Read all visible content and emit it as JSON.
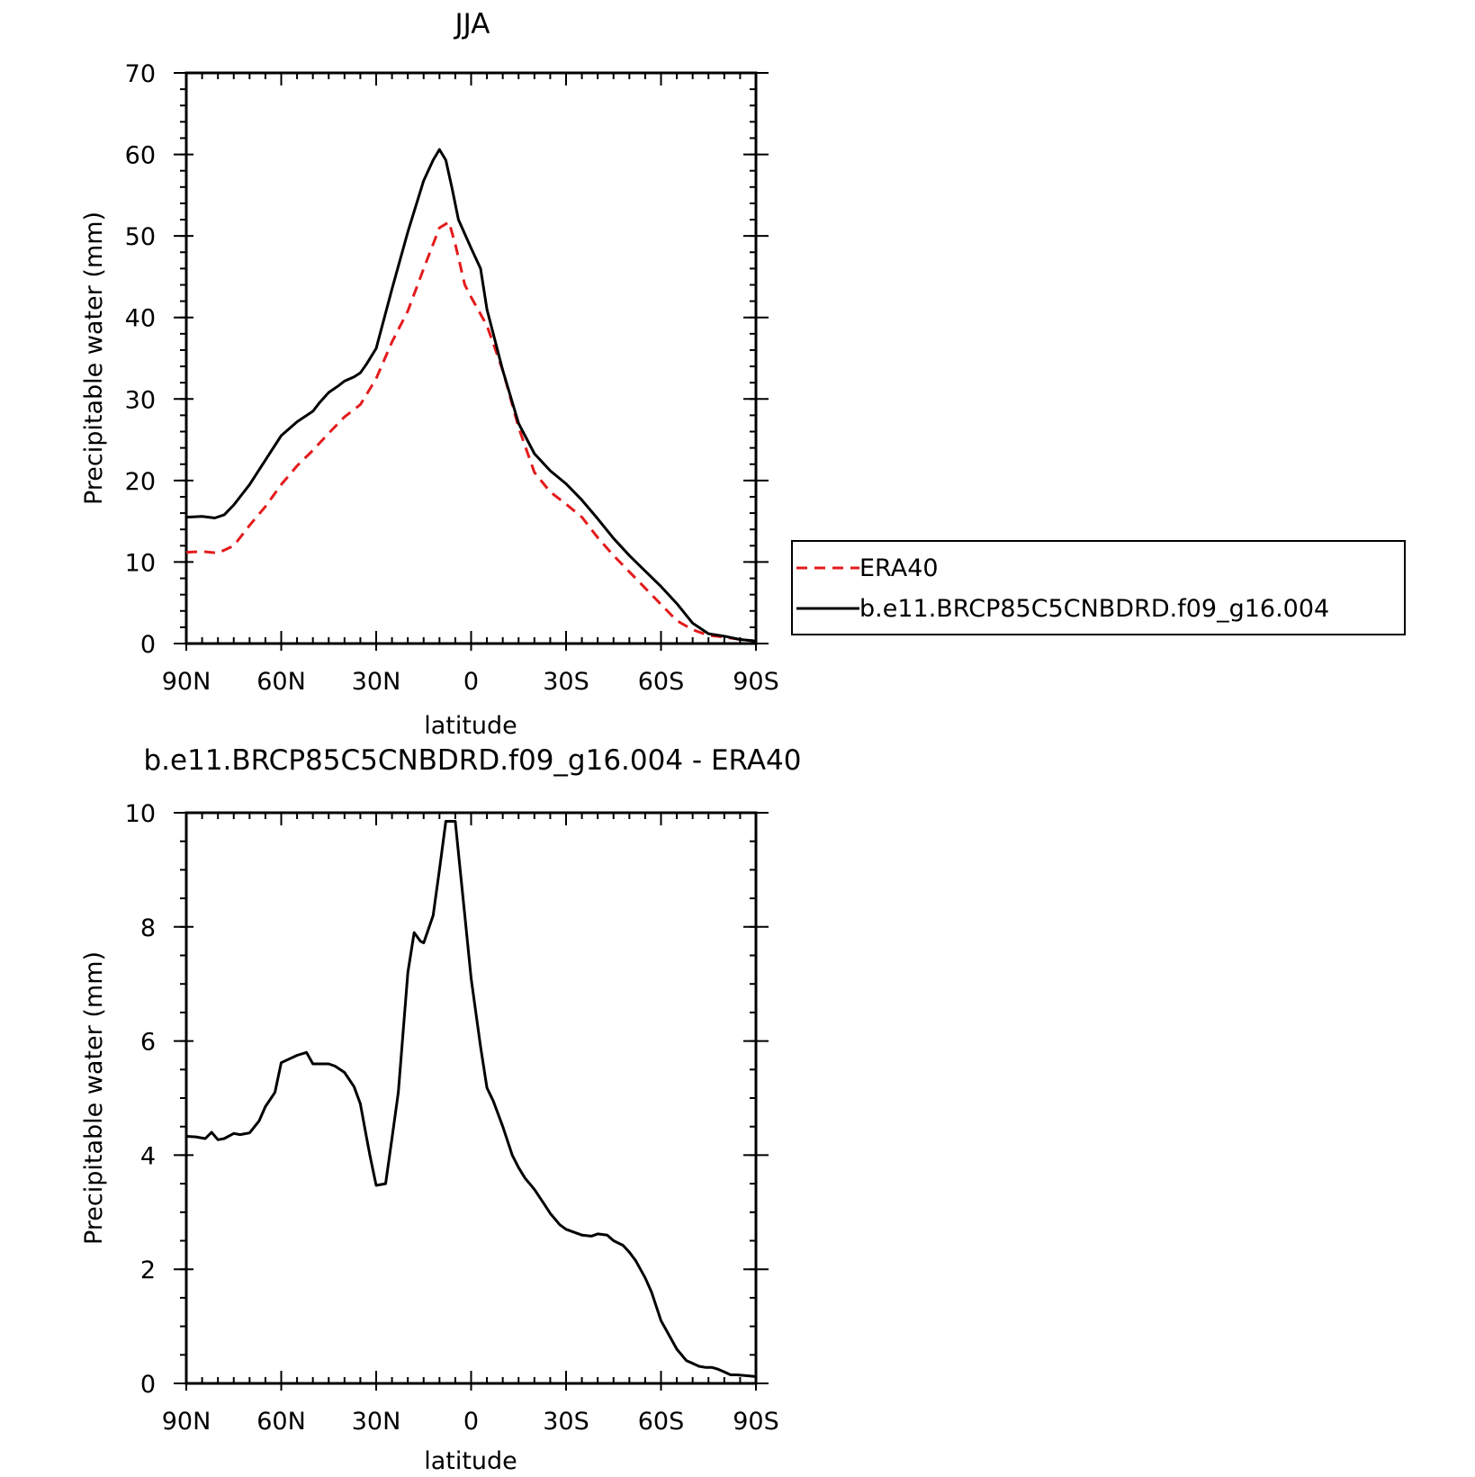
{
  "chart_data": [
    {
      "type": "line",
      "title": "JJA",
      "xlabel": "latitude",
      "ylabel": "Precipitable water (mm)",
      "xlim": [
        90,
        -90
      ],
      "ylim": [
        0,
        70
      ],
      "x_ticks": [
        {
          "value": 90,
          "label": "90N"
        },
        {
          "value": 60,
          "label": "60N"
        },
        {
          "value": 30,
          "label": "30N"
        },
        {
          "value": 0,
          "label": "0"
        },
        {
          "value": -30,
          "label": "30S"
        },
        {
          "value": -60,
          "label": "60S"
        },
        {
          "value": -90,
          "label": "90S"
        }
      ],
      "y_ticks": [
        0,
        10,
        20,
        30,
        40,
        50,
        60,
        70
      ],
      "legend_position": "right",
      "grid": false,
      "series": [
        {
          "name": "ERA40",
          "color": "#e41a1c",
          "dash": "dashed",
          "x": [
            90,
            85,
            80,
            75,
            70,
            65,
            60,
            55,
            50,
            45,
            40,
            35,
            30,
            25,
            20,
            15,
            10,
            7,
            5,
            2,
            0,
            -5,
            -10,
            -15,
            -20,
            -25,
            -30,
            -35,
            -40,
            -45,
            -50,
            -55,
            -60,
            -65,
            -70,
            -75,
            -80,
            -85,
            -90
          ],
          "y": [
            11.2,
            11.3,
            11.1,
            12,
            14.5,
            16.8,
            19.5,
            21.8,
            23.7,
            25.8,
            27.8,
            29.3,
            32.5,
            37,
            40.8,
            46,
            51,
            51.7,
            49,
            44,
            42.5,
            39,
            33.5,
            26.5,
            21,
            18.6,
            17.1,
            15.5,
            13,
            10.8,
            8.8,
            6.8,
            4.8,
            2.8,
            1.7,
            1.0,
            0.8,
            0.5,
            0.3
          ]
        },
        {
          "name": "b.e11.BRCP85C5CNBDRD.f09_g16.004",
          "color": "#000000",
          "dash": "solid",
          "x": [
            90,
            85,
            81,
            78,
            75,
            70,
            65,
            60,
            55,
            50,
            48,
            45,
            42,
            40,
            37,
            35,
            33,
            30,
            25,
            20,
            15,
            12,
            10,
            8,
            6,
            4,
            0,
            -3,
            -5,
            -10,
            -15,
            -20,
            -25,
            -30,
            -35,
            -40,
            -45,
            -50,
            -55,
            -60,
            -65,
            -70,
            -75,
            -80,
            -85,
            -90
          ],
          "y": [
            15.5,
            15.6,
            15.4,
            15.8,
            17,
            19.5,
            22.5,
            25.5,
            27.2,
            28.5,
            29.5,
            30.8,
            31.6,
            32.2,
            32.7,
            33.2,
            34.3,
            36.2,
            43.5,
            50.5,
            56.8,
            59.3,
            60.6,
            59.3,
            55.8,
            52,
            48.5,
            46,
            41,
            33.5,
            27,
            23.3,
            21.2,
            19.6,
            17.6,
            15.3,
            12.9,
            10.8,
            8.9,
            7,
            4.9,
            2.5,
            1.2,
            0.9,
            0.5,
            0.3
          ]
        }
      ]
    },
    {
      "type": "line",
      "title": "b.e11.BRCP85C5CNBDRD.f09_g16.004 - ERA40",
      "xlabel": "latitude",
      "ylabel": "Precipitable water (mm)",
      "xlim": [
        90,
        -90
      ],
      "ylim": [
        0,
        10
      ],
      "x_ticks": [
        {
          "value": 90,
          "label": "90N"
        },
        {
          "value": 60,
          "label": "60N"
        },
        {
          "value": 30,
          "label": "30N"
        },
        {
          "value": 0,
          "label": "0"
        },
        {
          "value": -30,
          "label": "30S"
        },
        {
          "value": -60,
          "label": "60S"
        },
        {
          "value": -90,
          "label": "90S"
        }
      ],
      "y_ticks": [
        0,
        2,
        4,
        6,
        8,
        10
      ],
      "grid": false,
      "series": [
        {
          "color": "#000000",
          "dash": "solid",
          "x": [
            90,
            87,
            84,
            82,
            80,
            78,
            75,
            73,
            70,
            67,
            65,
            62,
            60,
            55,
            52,
            50,
            45,
            43,
            40,
            37,
            35,
            33,
            32,
            30,
            27,
            25,
            23,
            20,
            18,
            16,
            15,
            12,
            10,
            8,
            6,
            5,
            4,
            2,
            0,
            -3,
            -5,
            -7,
            -10,
            -13,
            -15,
            -17,
            -20,
            -23,
            -25,
            -28,
            -30,
            -35,
            -38,
            -40,
            -43,
            -45,
            -48,
            -50,
            -52,
            -55,
            -57,
            -60,
            -62,
            -65,
            -68,
            -70,
            -72,
            -74,
            -76,
            -78,
            -80,
            -82,
            -84,
            -86,
            -88,
            -90
          ],
          "y": [
            4.33,
            4.32,
            4.29,
            4.4,
            4.27,
            4.29,
            4.38,
            4.36,
            4.39,
            4.6,
            4.85,
            5.1,
            5.62,
            5.75,
            5.8,
            5.6,
            5.6,
            5.56,
            5.45,
            5.2,
            4.9,
            4.3,
            4.0,
            3.47,
            3.5,
            4.3,
            5.1,
            7.2,
            7.9,
            7.75,
            7.72,
            8.2,
            9.0,
            9.85,
            9.85,
            9.85,
            9.3,
            8.2,
            7.1,
            5.9,
            5.18,
            4.95,
            4.5,
            4.0,
            3.78,
            3.6,
            3.4,
            3.15,
            2.98,
            2.78,
            2.7,
            2.6,
            2.58,
            2.62,
            2.6,
            2.5,
            2.42,
            2.3,
            2.15,
            1.85,
            1.6,
            1.1,
            0.9,
            0.6,
            0.4,
            0.35,
            0.3,
            0.28,
            0.28,
            0.25,
            0.2,
            0.15,
            0.15,
            0.14,
            0.13,
            0.12
          ]
        }
      ]
    }
  ]
}
